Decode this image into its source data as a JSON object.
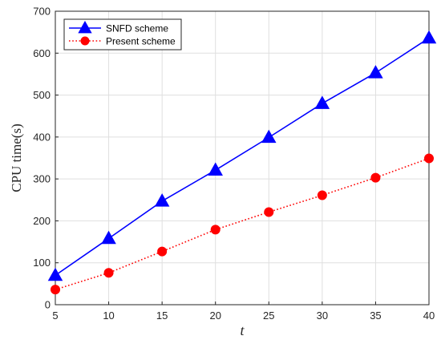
{
  "chart_data": {
    "type": "line",
    "xlabel": "t",
    "ylabel": "CPU time(s)",
    "x": [
      5,
      10,
      15,
      20,
      25,
      30,
      35,
      40
    ],
    "xlim": [
      5,
      40
    ],
    "ylim": [
      0,
      700
    ],
    "xticks": [
      "5",
      "10",
      "15",
      "20",
      "25",
      "30",
      "35",
      "40"
    ],
    "yticks": [
      "0",
      "100",
      "200",
      "300",
      "400",
      "500",
      "600",
      "700"
    ],
    "grid": true,
    "legend_position": "top-left",
    "series": [
      {
        "name": "SNFD scheme",
        "values": [
          70,
          158,
          247,
          321,
          399,
          480,
          553,
          636
        ],
        "color": "#0000ff",
        "line_style": "solid",
        "marker": "triangle"
      },
      {
        "name": "Present scheme",
        "values": [
          36,
          76,
          127,
          179,
          221,
          261,
          303,
          349
        ],
        "color": "#ff0000",
        "line_style": "dotted",
        "marker": "circle"
      }
    ]
  }
}
